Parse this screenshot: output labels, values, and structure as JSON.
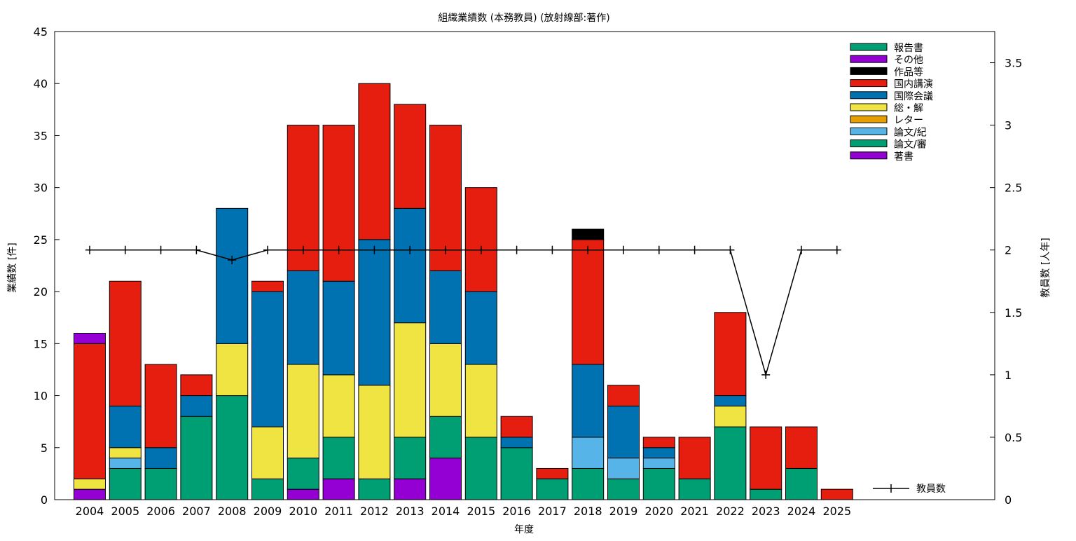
{
  "chart_data": {
    "type": "bar",
    "stacked": true,
    "title": "組織業績数 (本務教員) (放射線部:著作)",
    "xlabel": "年度",
    "ylabel": "業績数 [件]",
    "y2label": "教員数 [人年]",
    "ylim": [
      0,
      45
    ],
    "y2lim": [
      0,
      3.75
    ],
    "yticks": [
      "0",
      "5",
      "10",
      "15",
      "20",
      "25",
      "30",
      "35",
      "40",
      "45"
    ],
    "y2ticks": [
      "0",
      "0.5",
      "1",
      "1.5",
      "2",
      "2.5",
      "3",
      "3.5"
    ],
    "categories": [
      "2004",
      "2005",
      "2006",
      "2007",
      "2008",
      "2009",
      "2010",
      "2011",
      "2012",
      "2013",
      "2014",
      "2015",
      "2016",
      "2017",
      "2018",
      "2019",
      "2020",
      "2021",
      "2022",
      "2023",
      "2024",
      "2025"
    ],
    "legend_position": "top-right",
    "series": [
      {
        "name": "著書",
        "color": "#9400d3",
        "values": [
          1,
          0,
          0,
          0,
          0,
          0,
          1,
          2,
          0,
          2,
          4,
          0,
          0,
          0,
          0,
          0,
          0,
          0,
          0,
          0,
          0,
          0
        ]
      },
      {
        "name": "論文/審",
        "color": "#009e73",
        "values": [
          0,
          3,
          3,
          8,
          10,
          2,
          3,
          4,
          2,
          4,
          4,
          6,
          5,
          2,
          3,
          2,
          3,
          2,
          7,
          1,
          3,
          0
        ]
      },
      {
        "name": "論文/紀",
        "color": "#56b4e9",
        "values": [
          0,
          1,
          0,
          0,
          0,
          0,
          0,
          0,
          0,
          0,
          0,
          0,
          0,
          0,
          3,
          2,
          1,
          0,
          0,
          0,
          0,
          0
        ]
      },
      {
        "name": "レター",
        "color": "#e69f00",
        "values": [
          0,
          0,
          0,
          0,
          0,
          0,
          0,
          0,
          0,
          0,
          0,
          0,
          0,
          0,
          0,
          0,
          0,
          0,
          0,
          0,
          0,
          0
        ]
      },
      {
        "name": "総・解",
        "color": "#f0e442",
        "values": [
          1,
          1,
          0,
          0,
          5,
          5,
          9,
          6,
          9,
          11,
          7,
          7,
          0,
          0,
          0,
          0,
          0,
          0,
          2,
          0,
          0,
          0
        ]
      },
      {
        "name": "国際会議",
        "color": "#0072b2",
        "values": [
          0,
          4,
          2,
          2,
          13,
          13,
          9,
          9,
          14,
          11,
          7,
          7,
          1,
          0,
          7,
          5,
          1,
          0,
          1,
          0,
          0,
          0
        ]
      },
      {
        "name": "国内講演",
        "color": "#e51e10",
        "values": [
          13,
          12,
          8,
          2,
          0,
          1,
          14,
          15,
          15,
          10,
          14,
          10,
          2,
          1,
          12,
          2,
          1,
          4,
          8,
          6,
          4,
          1
        ]
      },
      {
        "name": "作品等",
        "color": "#000000",
        "values": [
          0,
          0,
          0,
          0,
          0,
          0,
          0,
          0,
          0,
          0,
          0,
          0,
          0,
          0,
          1,
          0,
          0,
          0,
          0,
          0,
          0,
          0
        ]
      },
      {
        "name": "その他",
        "color": "#9400d3",
        "values": [
          1,
          0,
          0,
          0,
          0,
          0,
          0,
          0,
          0,
          0,
          0,
          0,
          0,
          0,
          0,
          0,
          0,
          0,
          0,
          0,
          0,
          0
        ]
      },
      {
        "name": "報告書",
        "color": "#009e73",
        "values": [
          0,
          0,
          0,
          0,
          0,
          0,
          0,
          0,
          0,
          0,
          0,
          0,
          0,
          0,
          0,
          0,
          0,
          0,
          0,
          0,
          0,
          0
        ]
      }
    ],
    "line_series": {
      "name": "教員数",
      "axis": "y2",
      "color": "#000000",
      "values": [
        2,
        2,
        2,
        2,
        1.92,
        2,
        2,
        2,
        2,
        2,
        2,
        2,
        2,
        2,
        2,
        2,
        2,
        2,
        2,
        1,
        2,
        2
      ]
    }
  }
}
